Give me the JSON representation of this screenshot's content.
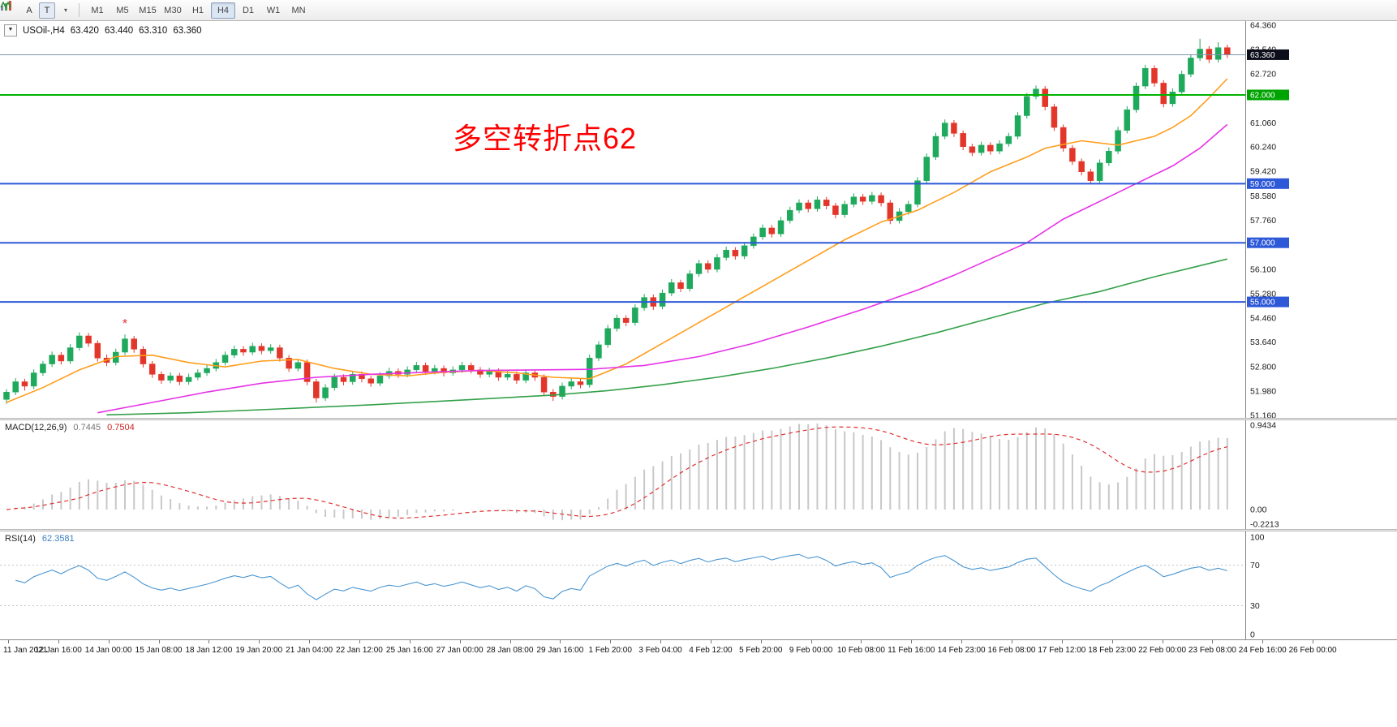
{
  "glyphs": {
    "oct_caret": "▼",
    "dropdown_caret": "▾"
  },
  "colors": {
    "bull": "#1fa95c",
    "bear": "#e3362a",
    "macd_hist": "#c8c8c8",
    "macd_signal": "#e03030",
    "rsi_line": "#4a96d2",
    "axis_text": "#1a1a1a"
  },
  "toolbar": {
    "icons": {
      "a_label": "A",
      "t_label": "T"
    },
    "timeframes": [
      "M1",
      "M5",
      "M15",
      "M30",
      "H1",
      "H4",
      "D1",
      "W1",
      "MN"
    ],
    "active_timeframe": "H4"
  },
  "symbol": {
    "title": "USOil-,H4",
    "open": "63.420",
    "high": "63.440",
    "low": "63.310",
    "close": "63.360"
  },
  "annotation": {
    "text": "多空转折点62",
    "color": "#ff0000"
  },
  "price_axis": {
    "range": {
      "max": 64.36,
      "min": 51.16
    },
    "ticks": [
      {
        "value": 64.36,
        "label": "64.360"
      },
      {
        "value": 63.54,
        "label": "63.540"
      },
      {
        "value": 62.72,
        "label": "62.720"
      },
      {
        "value": 61.06,
        "label": "61.060"
      },
      {
        "value": 60.24,
        "label": "60.240"
      },
      {
        "value": 59.42,
        "label": "59.420"
      },
      {
        "value": 58.58,
        "label": "58.580"
      },
      {
        "value": 57.76,
        "label": "57.760"
      },
      {
        "value": 56.1,
        "label": "56.100"
      },
      {
        "value": 55.28,
        "label": "55.280"
      },
      {
        "value": 54.46,
        "label": "54.460"
      },
      {
        "value": 53.64,
        "label": "53.640"
      },
      {
        "value": 52.8,
        "label": "52.800"
      },
      {
        "value": 51.98,
        "label": "51.980"
      },
      {
        "value": 51.16,
        "label": "51.160"
      }
    ],
    "badges": [
      {
        "value": 63.36,
        "label": "63.360",
        "bg": "#0c0f1a"
      },
      {
        "value": 62.0,
        "label": "62.000",
        "bg": "#00a400"
      },
      {
        "value": 59.0,
        "label": "59.000",
        "bg": "#2d58d8"
      },
      {
        "value": 57.0,
        "label": "57.000",
        "bg": "#2d58d8"
      },
      {
        "value": 55.0,
        "label": "55.000",
        "bg": "#2d58d8"
      }
    ]
  },
  "hlines": [
    {
      "name": "bid-price-line",
      "value": 63.36,
      "color": "#7e97ab",
      "width": 1
    },
    {
      "name": "resistance-line-62",
      "value": 62.0,
      "color": "#00b400",
      "width": 2
    },
    {
      "name": "support-line-59",
      "value": 59.0,
      "color": "#2d58d8",
      "width": 2
    },
    {
      "name": "support-line-57",
      "value": 57.0,
      "color": "#2d58d8",
      "width": 2
    },
    {
      "name": "support-line-55",
      "value": 55.0,
      "color": "#2d58d8",
      "width": 2
    }
  ],
  "macd": {
    "label": "MACD(12,26,9)",
    "value_main": "0.7445",
    "value_signal": "0.7504",
    "params": {
      "fast": 12,
      "slow": 26,
      "signal": 9
    },
    "axis": [
      {
        "value": 0.9434,
        "label": "0.9434"
      },
      {
        "value": 0,
        "label": "0.00"
      },
      {
        "value": -0.2213,
        "label": "-0.2213"
      }
    ]
  },
  "rsi": {
    "label": "RSI(14)",
    "value": "62.3581",
    "period": 14,
    "levels": [
      70,
      30
    ],
    "axis": [
      {
        "value": 100,
        "label": "100"
      },
      {
        "value": 70,
        "label": "70"
      },
      {
        "value": 30,
        "label": "30"
      },
      {
        "value": 0,
        "label": "0"
      }
    ]
  },
  "chart_data": {
    "type": "candlestick",
    "symbol": "USOil",
    "timeframe": "H4",
    "price_range": [
      51.16,
      64.36
    ],
    "time_labels": [
      "11 Jan 2021",
      "12 Jan 16:00",
      "14 Jan 00:00",
      "15 Jan 08:00",
      "18 Jan 12:00",
      "19 Jan 20:00",
      "21 Jan 04:00",
      "22 Jan 12:00",
      "25 Jan 16:00",
      "27 Jan 00:00",
      "28 Jan 08:00",
      "29 Jan 16:00",
      "1 Feb 20:00",
      "3 Feb 04:00",
      "4 Feb 12:00",
      "5 Feb 20:00",
      "9 Feb 00:00",
      "10 Feb 08:00",
      "11 Feb 16:00",
      "14 Feb 23:00",
      "16 Feb 08:00",
      "17 Feb 12:00",
      "18 Feb 23:00",
      "22 Feb 00:00",
      "23 Feb 08:00",
      "24 Feb 16:00",
      "26 Feb 00:00"
    ],
    "candles": [
      [
        51.7,
        52.05,
        51.55,
        51.95
      ],
      [
        51.95,
        52.42,
        51.85,
        52.3
      ],
      [
        52.3,
        52.4,
        52.0,
        52.15
      ],
      [
        52.15,
        52.72,
        52.05,
        52.6
      ],
      [
        52.6,
        53.0,
        52.5,
        52.9
      ],
      [
        52.9,
        53.32,
        52.8,
        53.2
      ],
      [
        53.2,
        53.3,
        52.88,
        53.0
      ],
      [
        53.0,
        53.57,
        52.9,
        53.45
      ],
      [
        53.45,
        53.97,
        53.35,
        53.85
      ],
      [
        53.85,
        53.95,
        53.48,
        53.6
      ],
      [
        53.6,
        53.7,
        52.98,
        53.1
      ],
      [
        53.1,
        53.22,
        52.83,
        52.95
      ],
      [
        52.95,
        53.42,
        52.85,
        53.3
      ],
      [
        53.3,
        53.9,
        53.2,
        53.75
      ],
      [
        53.75,
        53.85,
        53.28,
        53.4
      ],
      [
        53.4,
        53.5,
        52.78,
        52.9
      ],
      [
        52.9,
        53.0,
        52.43,
        52.55
      ],
      [
        52.55,
        52.65,
        52.23,
        52.35
      ],
      [
        52.35,
        52.62,
        52.25,
        52.5
      ],
      [
        52.5,
        52.6,
        52.18,
        52.3
      ],
      [
        52.3,
        52.57,
        52.2,
        52.45
      ],
      [
        52.45,
        52.72,
        52.35,
        52.6
      ],
      [
        52.6,
        52.87,
        52.5,
        52.75
      ],
      [
        52.75,
        53.07,
        52.65,
        52.95
      ],
      [
        52.95,
        53.32,
        52.85,
        53.2
      ],
      [
        53.2,
        53.52,
        53.1,
        53.4
      ],
      [
        53.4,
        53.5,
        53.18,
        53.3
      ],
      [
        53.3,
        53.62,
        53.2,
        53.5
      ],
      [
        53.5,
        53.6,
        53.23,
        53.35
      ],
      [
        53.35,
        53.57,
        53.25,
        53.45
      ],
      [
        53.45,
        53.55,
        52.98,
        53.1
      ],
      [
        53.1,
        53.2,
        52.63,
        52.75
      ],
      [
        52.75,
        53.07,
        52.65,
        52.95
      ],
      [
        52.95,
        53.05,
        52.18,
        52.3
      ],
      [
        52.3,
        52.4,
        51.6,
        51.75
      ],
      [
        51.75,
        52.22,
        51.65,
        52.1
      ],
      [
        52.1,
        52.57,
        52.0,
        52.45
      ],
      [
        52.45,
        52.55,
        52.18,
        52.3
      ],
      [
        52.3,
        52.67,
        52.2,
        52.55
      ],
      [
        52.55,
        52.65,
        52.28,
        52.4
      ],
      [
        52.4,
        52.5,
        52.13,
        52.25
      ],
      [
        52.25,
        52.62,
        52.15,
        52.5
      ],
      [
        52.5,
        52.77,
        52.4,
        52.65
      ],
      [
        52.65,
        52.75,
        52.43,
        52.55
      ],
      [
        52.55,
        52.82,
        52.45,
        52.7
      ],
      [
        52.7,
        52.97,
        52.6,
        52.85
      ],
      [
        52.85,
        52.95,
        52.53,
        52.65
      ],
      [
        52.65,
        52.87,
        52.55,
        52.75
      ],
      [
        52.75,
        52.85,
        52.48,
        52.6
      ],
      [
        52.6,
        52.82,
        52.5,
        52.7
      ],
      [
        52.7,
        52.97,
        52.6,
        52.85
      ],
      [
        52.85,
        52.95,
        52.58,
        52.7
      ],
      [
        52.7,
        52.8,
        52.43,
        52.55
      ],
      [
        52.55,
        52.77,
        52.45,
        52.65
      ],
      [
        52.65,
        52.75,
        52.33,
        52.45
      ],
      [
        52.45,
        52.67,
        52.35,
        52.55
      ],
      [
        52.55,
        52.65,
        52.23,
        52.35
      ],
      [
        52.35,
        52.72,
        52.25,
        52.6
      ],
      [
        52.6,
        52.7,
        52.33,
        52.45
      ],
      [
        52.45,
        52.55,
        51.83,
        51.95
      ],
      [
        51.95,
        52.05,
        51.65,
        51.8
      ],
      [
        51.8,
        52.27,
        51.7,
        52.15
      ],
      [
        52.15,
        52.42,
        52.05,
        52.3
      ],
      [
        52.3,
        52.4,
        52.08,
        52.2
      ],
      [
        52.2,
        53.22,
        52.1,
        53.1
      ],
      [
        53.1,
        53.67,
        53.0,
        53.55
      ],
      [
        53.55,
        54.22,
        53.45,
        54.1
      ],
      [
        54.1,
        54.57,
        54.0,
        54.45
      ],
      [
        54.45,
        54.55,
        54.18,
        54.3
      ],
      [
        54.3,
        54.92,
        54.2,
        54.8
      ],
      [
        54.8,
        55.27,
        54.7,
        55.15
      ],
      [
        55.15,
        55.25,
        54.73,
        54.85
      ],
      [
        54.85,
        55.42,
        54.75,
        55.3
      ],
      [
        55.3,
        55.77,
        55.2,
        55.65
      ],
      [
        55.65,
        55.75,
        55.33,
        55.45
      ],
      [
        55.45,
        56.07,
        55.35,
        55.95
      ],
      [
        55.95,
        56.42,
        55.85,
        56.3
      ],
      [
        56.3,
        56.4,
        55.98,
        56.1
      ],
      [
        56.1,
        56.62,
        56.0,
        56.5
      ],
      [
        56.5,
        56.87,
        56.4,
        56.75
      ],
      [
        56.75,
        56.85,
        56.43,
        56.55
      ],
      [
        56.55,
        57.02,
        56.45,
        56.9
      ],
      [
        56.9,
        57.32,
        56.8,
        57.2
      ],
      [
        57.2,
        57.62,
        57.1,
        57.5
      ],
      [
        57.5,
        57.6,
        57.18,
        57.3
      ],
      [
        57.3,
        57.87,
        57.2,
        57.75
      ],
      [
        57.75,
        58.22,
        57.65,
        58.1
      ],
      [
        58.1,
        58.47,
        58.0,
        58.35
      ],
      [
        58.35,
        58.45,
        58.03,
        58.15
      ],
      [
        58.15,
        58.57,
        58.05,
        58.45
      ],
      [
        58.45,
        58.55,
        58.13,
        58.25
      ],
      [
        58.25,
        58.35,
        57.83,
        57.95
      ],
      [
        57.95,
        58.42,
        57.85,
        58.3
      ],
      [
        58.3,
        58.67,
        58.2,
        58.55
      ],
      [
        58.55,
        58.65,
        58.28,
        58.4
      ],
      [
        58.4,
        58.72,
        58.3,
        58.6
      ],
      [
        58.6,
        58.7,
        58.23,
        58.35
      ],
      [
        58.35,
        58.45,
        57.63,
        57.75
      ],
      [
        57.75,
        58.17,
        57.65,
        58.05
      ],
      [
        58.05,
        58.42,
        57.95,
        58.3
      ],
      [
        58.3,
        59.22,
        58.2,
        59.1
      ],
      [
        59.1,
        60.02,
        59.0,
        59.9
      ],
      [
        59.9,
        60.72,
        59.8,
        60.6
      ],
      [
        60.6,
        61.17,
        60.5,
        61.05
      ],
      [
        61.05,
        61.15,
        60.58,
        60.7
      ],
      [
        60.7,
        60.8,
        60.13,
        60.25
      ],
      [
        60.25,
        60.35,
        59.93,
        60.05
      ],
      [
        60.05,
        60.42,
        59.95,
        60.3
      ],
      [
        60.3,
        60.4,
        59.98,
        60.1
      ],
      [
        60.1,
        60.47,
        60.0,
        60.35
      ],
      [
        60.35,
        60.72,
        60.25,
        60.6
      ],
      [
        60.6,
        61.42,
        60.5,
        61.3
      ],
      [
        61.3,
        62.07,
        61.2,
        61.95
      ],
      [
        61.95,
        62.32,
        61.85,
        62.2
      ],
      [
        62.2,
        62.3,
        61.48,
        61.6
      ],
      [
        61.6,
        61.7,
        60.78,
        60.9
      ],
      [
        60.9,
        61.0,
        60.08,
        60.2
      ],
      [
        60.2,
        60.3,
        59.63,
        59.75
      ],
      [
        59.75,
        59.85,
        59.28,
        59.4
      ],
      [
        59.4,
        59.5,
        58.98,
        59.1
      ],
      [
        59.1,
        59.82,
        59.0,
        59.7
      ],
      [
        59.7,
        60.22,
        59.6,
        60.1
      ],
      [
        60.1,
        60.92,
        60.0,
        60.8
      ],
      [
        60.8,
        61.62,
        60.7,
        61.5
      ],
      [
        61.5,
        62.42,
        61.4,
        62.3
      ],
      [
        62.3,
        63.02,
        62.2,
        62.9
      ],
      [
        62.9,
        63.0,
        62.28,
        62.4
      ],
      [
        62.4,
        62.5,
        61.58,
        61.7
      ],
      [
        61.7,
        62.22,
        61.6,
        62.1
      ],
      [
        62.1,
        62.82,
        62.0,
        62.7
      ],
      [
        62.7,
        63.37,
        62.6,
        63.25
      ],
      [
        63.25,
        63.9,
        63.15,
        63.55
      ],
      [
        63.55,
        63.65,
        63.08,
        63.2
      ],
      [
        63.2,
        63.78,
        63.1,
        63.6
      ],
      [
        63.6,
        63.7,
        63.25,
        63.36
      ]
    ],
    "moving_averages": [
      {
        "name": "ma-fast-orange",
        "color": "#ff9d1c",
        "points": [
          [
            0,
            51.6
          ],
          [
            4,
            52.1
          ],
          [
            8,
            52.7
          ],
          [
            12,
            53.15
          ],
          [
            16,
            53.2
          ],
          [
            20,
            52.95
          ],
          [
            24,
            52.8
          ],
          [
            28,
            53.0
          ],
          [
            32,
            53.05
          ],
          [
            36,
            52.75
          ],
          [
            40,
            52.55
          ],
          [
            44,
            52.5
          ],
          [
            48,
            52.62
          ],
          [
            52,
            52.68
          ],
          [
            56,
            52.6
          ],
          [
            60,
            52.45
          ],
          [
            64,
            52.4
          ],
          [
            68,
            52.9
          ],
          [
            72,
            53.6
          ],
          [
            76,
            54.3
          ],
          [
            80,
            55.0
          ],
          [
            84,
            55.7
          ],
          [
            88,
            56.4
          ],
          [
            92,
            57.1
          ],
          [
            96,
            57.7
          ],
          [
            100,
            58.1
          ],
          [
            104,
            58.7
          ],
          [
            108,
            59.4
          ],
          [
            112,
            59.9
          ],
          [
            114,
            60.2
          ],
          [
            118,
            60.45
          ],
          [
            122,
            60.3
          ],
          [
            126,
            60.6
          ],
          [
            128,
            60.9
          ],
          [
            130,
            61.3
          ],
          [
            132,
            61.9
          ],
          [
            134,
            62.55
          ]
        ]
      },
      {
        "name": "ma-mid-magenta",
        "color": "#e632e6",
        "points": [
          [
            10,
            51.25
          ],
          [
            16,
            51.6
          ],
          [
            22,
            51.95
          ],
          [
            28,
            52.25
          ],
          [
            34,
            52.45
          ],
          [
            40,
            52.55
          ],
          [
            46,
            52.62
          ],
          [
            52,
            52.68
          ],
          [
            58,
            52.7
          ],
          [
            64,
            52.72
          ],
          [
            70,
            52.85
          ],
          [
            76,
            53.15
          ],
          [
            82,
            53.6
          ],
          [
            88,
            54.15
          ],
          [
            94,
            54.75
          ],
          [
            100,
            55.4
          ],
          [
            104,
            55.9
          ],
          [
            108,
            56.45
          ],
          [
            112,
            57.0
          ],
          [
            116,
            57.8
          ],
          [
            120,
            58.4
          ],
          [
            124,
            59.0
          ],
          [
            128,
            59.6
          ],
          [
            131,
            60.2
          ],
          [
            134,
            61.0
          ]
        ]
      },
      {
        "name": "ma-slow-green",
        "color": "#34a04a",
        "points": [
          [
            11,
            51.18
          ],
          [
            20,
            51.25
          ],
          [
            30,
            51.38
          ],
          [
            40,
            51.52
          ],
          [
            50,
            51.68
          ],
          [
            60,
            51.85
          ],
          [
            66,
            52.0
          ],
          [
            72,
            52.2
          ],
          [
            78,
            52.45
          ],
          [
            84,
            52.75
          ],
          [
            90,
            53.1
          ],
          [
            96,
            53.5
          ],
          [
            102,
            53.95
          ],
          [
            108,
            54.45
          ],
          [
            114,
            54.95
          ],
          [
            120,
            55.35
          ],
          [
            126,
            55.85
          ],
          [
            130,
            56.15
          ],
          [
            134,
            56.45
          ]
        ]
      }
    ],
    "markers": [
      {
        "glyph": "*",
        "candle": 13,
        "price": 54.12,
        "color": "#e03030"
      }
    ]
  }
}
